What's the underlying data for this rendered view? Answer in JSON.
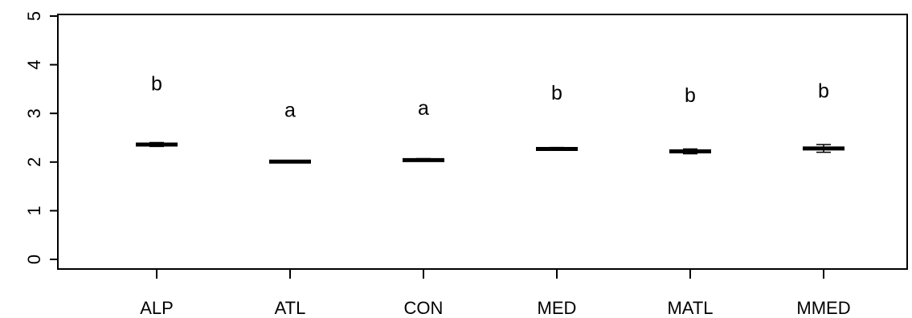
{
  "chart_data": {
    "type": "scatter",
    "categories": [
      "ALP",
      "ATL",
      "CON",
      "MED",
      "MATL",
      "MMED"
    ],
    "values": [
      2.36,
      2.01,
      2.04,
      2.27,
      2.22,
      2.28
    ],
    "error_low": [
      2.32,
      1.99,
      2.02,
      2.24,
      2.17,
      2.2
    ],
    "error_high": [
      2.4,
      2.03,
      2.07,
      2.3,
      2.27,
      2.36
    ],
    "letters": [
      "b",
      "a",
      "a",
      "b",
      "b",
      "b"
    ],
    "letter_y": [
      3.62,
      3.08,
      3.12,
      3.43,
      3.38,
      3.47
    ],
    "yticks": [
      "0",
      "1",
      "2",
      "3",
      "4",
      "5"
    ],
    "ylim": [
      0,
      5
    ],
    "grid": false,
    "title": "",
    "xlabel": "",
    "ylabel": ""
  }
}
